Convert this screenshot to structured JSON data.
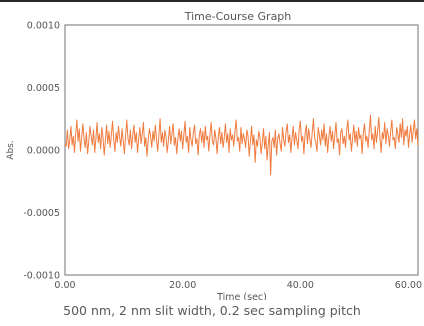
{
  "chart_data": {
    "type": "line",
    "title": "Time-Course Graph",
    "xlabel": "Time (sec)",
    "ylabel": "Abs.",
    "xlim": [
      0,
      60
    ],
    "ylim": [
      -0.001,
      0.001
    ],
    "x_ticks": [
      "0.00",
      "20.00",
      "40.00",
      "60.00"
    ],
    "y_ticks": [
      "0.0010",
      "0.0005",
      "0.0000",
      "-0.0005",
      "-0.0010"
    ],
    "grid": false,
    "legend": "none",
    "line_color": "#f07b3f",
    "frame_color": "#8a8a8a",
    "series": [
      {
        "x_start": 0,
        "x_step": 0.2,
        "values": [
          5e-05,
          3e-05,
          0.00016,
          1e-05,
          8e-05,
          0.00019,
          4e-05,
          0.00011,
          -2e-05,
          0.00013,
          0.00024,
          7e-05,
          0.00017,
          -1e-05,
          0.0001,
          0.00021,
          9e-05,
          2e-05,
          0.00014,
          -3e-05,
          7e-05,
          0.00019,
          0.00011,
          4e-05,
          0.00016,
          -2e-05,
          9e-05,
          0.00022,
          6e-05,
          0.00013,
          1e-05,
          0.00018,
          0.0001,
          -4e-05,
          8e-05,
          0.0002,
          5e-05,
          0.00015,
          2e-05,
          0.00012,
          0.00023,
          8e-05,
          -1e-05,
          0.00014,
          6e-05,
          0.00019,
          0.0001,
          3e-05,
          0.00017,
          7e-05,
          -3e-05,
          0.00012,
          0.00024,
          9e-05,
          4e-05,
          0.00016,
          1e-05,
          0.00011,
          0.0002,
          6e-05,
          0.00014,
          -2e-05,
          9e-05,
          0.00018,
          5e-05,
          0.00013,
          0.00022,
          3e-05,
          0.0001,
          -5e-05,
          8e-05,
          0.00017,
          0.00011,
          2e-05,
          0.00015,
          7e-05,
          0.0002,
          9e-05,
          -1e-05,
          0.00012,
          0.00025,
          6e-05,
          0.00014,
          3e-05,
          0.00016,
          0.0001,
          -2e-05,
          8e-05,
          0.00019,
          5e-05,
          0.00013,
          0.00021,
          4e-05,
          0.0001,
          -3e-05,
          9e-05,
          0.00017,
          7e-05,
          0.00015,
          1e-05,
          0.00012,
          0.00023,
          6e-05,
          0.00011,
          -2e-05,
          0.00018,
          8e-05,
          3e-05,
          0.00014,
          0.0002,
          5e-05,
          9e-05,
          -4e-05,
          0.00012,
          0.00017,
          6e-05,
          0.00015,
          2e-05,
          0.00019,
          8e-05,
          0.00011,
          -1e-05,
          0.00013,
          0.00022,
          7e-05,
          4e-05,
          0.00016,
          9e-05,
          -3e-05,
          0.00011,
          0.00018,
          5e-05,
          0.00014,
          2e-05,
          0.0001,
          0.00021,
          6e-05,
          0.00013,
          -2e-05,
          0.00017,
          8e-05,
          0.00012,
          3e-05,
          0.00015,
          0.00024,
          7e-05,
          0.0001,
          -1e-05,
          0.00018,
          5e-05,
          0.00013,
          9e-05,
          2e-05,
          0.00016,
          0.00011,
          -5e-05,
          7e-05,
          0.00019,
          4e-05,
          0.00012,
          -0.0001,
          8e-05,
          3e-05,
          0.00015,
          0.0001,
          -3e-05,
          6e-05,
          0.00017,
          1e-05,
          0.00011,
          -8e-05,
          4e-05,
          0.00014,
          -0.0002,
          7e-05,
          0.0001,
          2e-05,
          0.00016,
          -4e-05,
          9e-05,
          0.00013,
          5e-05,
          -1e-05,
          0.00018,
          8e-05,
          3e-05,
          0.00015,
          0.00021,
          6e-05,
          0.00012,
          -2e-05,
          0.0001,
          0.00019,
          4e-05,
          0.00014,
          8e-05,
          1e-05,
          0.00016,
          0.00023,
          7e-05,
          0.00011,
          -3e-05,
          0.00013,
          0.0002,
          5e-05,
          0.00017,
          9e-05,
          2e-05,
          0.00014,
          0.00025,
          0.0001,
          6e-05,
          -1e-05,
          0.00018,
          0.00012,
          4e-05,
          0.00016,
          8e-05,
          0.00021,
          3e-05,
          0.00013,
          -2e-05,
          0.00011,
          0.00019,
          7e-05,
          0.00015,
          1e-05,
          0.00012,
          0.00022,
          6e-05,
          9e-05,
          -4e-05,
          0.00014,
          0.00017,
          5e-05,
          0.00011,
          2e-05,
          0.00016,
          0.00024,
          8e-05,
          0.00013,
          -1e-05,
          0.0001,
          0.0002,
          6e-05,
          0.00015,
          3e-05,
          0.00018,
          9e-05,
          0.00012,
          -3e-05,
          0.00014,
          0.00021,
          7e-05,
          0.00011,
          2e-05,
          0.00016,
          0.00028,
          8e-05,
          0.00013,
          1e-05,
          0.00019,
          6e-05,
          0.00015,
          0.00026,
          0.0001,
          -2e-05,
          0.00014,
          9e-05,
          0.00022,
          5e-05,
          0.00017,
          0.00012,
          3e-05,
          0.00015,
          0.00024,
          8e-05,
          0.0001,
          1e-05,
          0.00018,
          0.00013,
          6e-05,
          0.00021,
          0.0001,
          0.00025,
          4e-05,
          0.00016,
          0.00011,
          0.00019,
          2e-05,
          0.00013,
          0.0002,
          6e-05,
          0.00015,
          0.00024,
          9e-05,
          0.00017,
          3e-05
        ]
      }
    ]
  },
  "caption": "500 nm, 2 nm slit width, 0.2 sec sampling pitch"
}
